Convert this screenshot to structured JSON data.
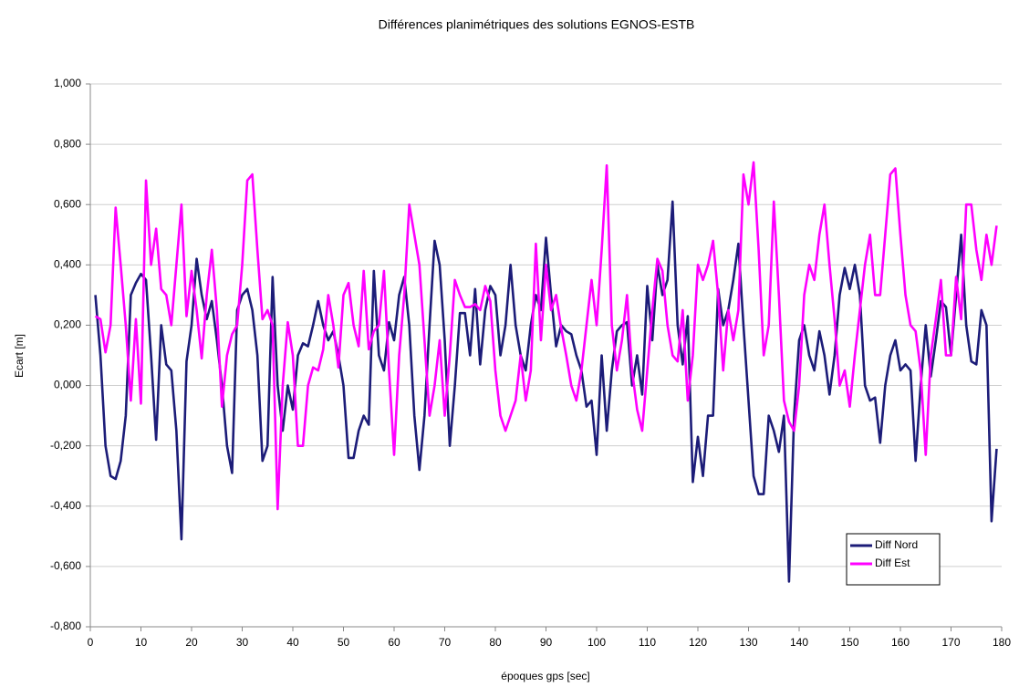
{
  "chart_data": {
    "type": "line",
    "title": "Différences planimétriques des solutions EGNOS-ESTB",
    "x_label": "époques gps [sec]",
    "y_label": "Ecart [m]",
    "xlim": [
      0,
      180
    ],
    "xticks": [
      0,
      10,
      20,
      30,
      40,
      50,
      60,
      70,
      80,
      90,
      100,
      110,
      120,
      130,
      140,
      150,
      160,
      170,
      180
    ],
    "ylim": [
      -0.8,
      1.0
    ],
    "yticks": [
      {
        "value": -0.8,
        "label": "-0,800"
      },
      {
        "value": -0.6,
        "label": "-0,600"
      },
      {
        "value": -0.4,
        "label": "-0,400"
      },
      {
        "value": -0.2,
        "label": "-0,200"
      },
      {
        "value": 0,
        "label": "0,000"
      },
      {
        "value": 0.2,
        "label": "0,200"
      },
      {
        "value": 0.4,
        "label": "0,400"
      },
      {
        "value": 0.6,
        "label": "0,600"
      },
      {
        "value": 0.8,
        "label": "0,800"
      },
      {
        "value": 1.0,
        "label": "1,000"
      }
    ],
    "grid": true,
    "legend": "lower right",
    "x": [
      1,
      2,
      3,
      4,
      5,
      6,
      7,
      8,
      9,
      10,
      11,
      12,
      13,
      14,
      15,
      16,
      17,
      18,
      19,
      20,
      21,
      22,
      23,
      24,
      25,
      26,
      27,
      28,
      29,
      30,
      31,
      32,
      33,
      34,
      35,
      36,
      37,
      38,
      39,
      40,
      41,
      42,
      43,
      44,
      45,
      46,
      47,
      48,
      49,
      50,
      51,
      52,
      53,
      54,
      55,
      56,
      57,
      58,
      59,
      60,
      61,
      62,
      63,
      64,
      65,
      66,
      67,
      68,
      69,
      70,
      71,
      72,
      73,
      74,
      75,
      76,
      77,
      78,
      79,
      80,
      81,
      82,
      83,
      84,
      85,
      86,
      87,
      88,
      89,
      90,
      91,
      92,
      93,
      94,
      95,
      96,
      97,
      98,
      99,
      100,
      101,
      102,
      103,
      104,
      105,
      106,
      107,
      108,
      109,
      110,
      111,
      112,
      113,
      114,
      115,
      116,
      117,
      118,
      119,
      120,
      121,
      122,
      123,
      124,
      125,
      126,
      127,
      128,
      129,
      130,
      131,
      132,
      133,
      134,
      135,
      136,
      137,
      138,
      139,
      140,
      141,
      142,
      143,
      144,
      145,
      146,
      147,
      148,
      149,
      150,
      151,
      152,
      153,
      154,
      155,
      156,
      157,
      158,
      159,
      160,
      161,
      162,
      163,
      164,
      165,
      166,
      167,
      168,
      169,
      170,
      171,
      172,
      173,
      174,
      175,
      176,
      177,
      178,
      179
    ],
    "series": [
      {
        "name": "Diff Nord",
        "color": "#1c1c78",
        "values": [
          0.3,
          0.1,
          -0.2,
          -0.3,
          -0.31,
          -0.25,
          -0.1,
          0.3,
          0.34,
          0.37,
          0.35,
          0.1,
          -0.18,
          0.2,
          0.07,
          0.05,
          -0.15,
          -0.51,
          0.08,
          0.2,
          0.42,
          0.3,
          0.22,
          0.28,
          0.15,
          0.0,
          -0.2,
          -0.29,
          0.25,
          0.3,
          0.32,
          0.25,
          0.1,
          -0.25,
          -0.2,
          0.36,
          0.0,
          -0.15,
          0.0,
          -0.08,
          0.1,
          0.14,
          0.13,
          0.2,
          0.28,
          0.2,
          0.15,
          0.18,
          0.1,
          0.0,
          -0.24,
          -0.24,
          -0.15,
          -0.1,
          -0.13,
          0.38,
          0.1,
          0.05,
          0.21,
          0.15,
          0.3,
          0.36,
          0.2,
          -0.1,
          -0.28,
          -0.1,
          0.2,
          0.48,
          0.4,
          0.15,
          -0.2,
          0.0,
          0.24,
          0.24,
          0.1,
          0.32,
          0.07,
          0.25,
          0.33,
          0.3,
          0.1,
          0.2,
          0.4,
          0.2,
          0.1,
          0.05,
          0.2,
          0.3,
          0.25,
          0.49,
          0.3,
          0.13,
          0.2,
          0.18,
          0.17,
          0.1,
          0.05,
          -0.07,
          -0.05,
          -0.23,
          0.1,
          -0.15,
          0.05,
          0.18,
          0.2,
          0.21,
          0.0,
          0.1,
          -0.03,
          0.33,
          0.15,
          0.4,
          0.3,
          0.35,
          0.61,
          0.2,
          0.07,
          0.23,
          -0.32,
          -0.17,
          -0.3,
          -0.1,
          -0.1,
          0.32,
          0.2,
          0.25,
          0.35,
          0.47,
          0.2,
          -0.05,
          -0.3,
          -0.36,
          -0.36,
          -0.1,
          -0.15,
          -0.22,
          -0.1,
          -0.65,
          -0.1,
          0.15,
          0.2,
          0.1,
          0.05,
          0.18,
          0.1,
          -0.03,
          0.1,
          0.3,
          0.39,
          0.32,
          0.4,
          0.3,
          0.0,
          -0.05,
          -0.04,
          -0.19,
          0.0,
          0.1,
          0.15,
          0.05,
          0.07,
          0.05,
          -0.25,
          0.0,
          0.2,
          0.03,
          0.15,
          0.28,
          0.26,
          0.1,
          0.3,
          0.5,
          0.2,
          0.08,
          0.07,
          0.25,
          0.2,
          -0.45,
          -0.21
        ]
      },
      {
        "name": "Diff Est",
        "color": "#ff00ff",
        "values": [
          0.23,
          0.22,
          0.11,
          0.2,
          0.59,
          0.4,
          0.2,
          -0.05,
          0.22,
          -0.06,
          0.68,
          0.4,
          0.52,
          0.32,
          0.3,
          0.2,
          0.4,
          0.6,
          0.23,
          0.38,
          0.25,
          0.09,
          0.3,
          0.45,
          0.25,
          -0.07,
          0.1,
          0.17,
          0.2,
          0.4,
          0.68,
          0.7,
          0.45,
          0.22,
          0.25,
          0.2,
          -0.41,
          0.0,
          0.21,
          0.1,
          -0.2,
          -0.2,
          0.0,
          0.06,
          0.05,
          0.12,
          0.3,
          0.2,
          0.06,
          0.3,
          0.34,
          0.2,
          0.13,
          0.38,
          0.12,
          0.18,
          0.2,
          0.38,
          0.05,
          -0.23,
          0.1,
          0.3,
          0.6,
          0.5,
          0.4,
          0.15,
          -0.1,
          0.0,
          0.15,
          -0.1,
          0.1,
          0.35,
          0.3,
          0.26,
          0.26,
          0.27,
          0.25,
          0.33,
          0.28,
          0.05,
          -0.1,
          -0.15,
          -0.1,
          -0.05,
          0.1,
          -0.05,
          0.05,
          0.47,
          0.15,
          0.4,
          0.25,
          0.3,
          0.19,
          0.1,
          0.0,
          -0.05,
          0.05,
          0.2,
          0.35,
          0.2,
          0.45,
          0.73,
          0.2,
          0.05,
          0.15,
          0.3,
          0.05,
          -0.08,
          -0.15,
          0.05,
          0.25,
          0.42,
          0.38,
          0.2,
          0.1,
          0.08,
          0.25,
          -0.05,
          0.1,
          0.4,
          0.35,
          0.4,
          0.48,
          0.3,
          0.05,
          0.25,
          0.15,
          0.25,
          0.7,
          0.6,
          0.74,
          0.45,
          0.1,
          0.2,
          0.61,
          0.3,
          -0.05,
          -0.12,
          -0.15,
          0.0,
          0.3,
          0.4,
          0.35,
          0.5,
          0.6,
          0.4,
          0.22,
          0.0,
          0.05,
          -0.07,
          0.1,
          0.25,
          0.4,
          0.5,
          0.3,
          0.3,
          0.5,
          0.7,
          0.72,
          0.5,
          0.3,
          0.2,
          0.18,
          0.05,
          -0.23,
          0.1,
          0.22,
          0.35,
          0.1,
          0.1,
          0.36,
          0.22,
          0.6,
          0.6,
          0.45,
          0.35,
          0.5,
          0.4,
          0.53
        ]
      }
    ]
  }
}
